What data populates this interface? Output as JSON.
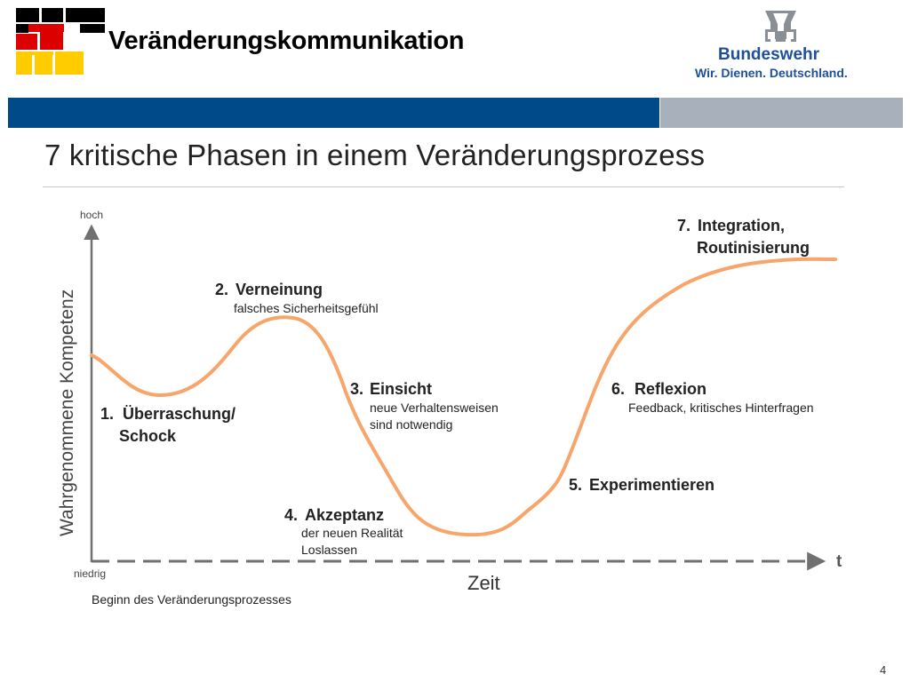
{
  "header": {
    "title": "Veränderungskommunikation",
    "brand_name": "Bundeswehr",
    "brand_tagline": "Wir. Dienen. Deutschland.",
    "logo_colors": [
      "#000000",
      "#dd0000",
      "#ffcc00"
    ],
    "emblem": "iron-cross-icon"
  },
  "colors": {
    "bar_blue": "#004a89",
    "bar_gray": "#a8b1bb",
    "curve": "#f7a56a",
    "axis": "#707070"
  },
  "slide": {
    "heading": "7 kritische Phasen in einem Veränderungsprozess",
    "page_number": "4"
  },
  "diagram": {
    "y_axis": {
      "label": "Wahrgenommene Kompetenz",
      "high": "hoch",
      "low": "niedrig"
    },
    "x_axis": {
      "label": "Zeit",
      "end_label": "t",
      "start_note": "Beginn des Veränderungsprozesses"
    },
    "phases": [
      {
        "number": "1.",
        "title_line1": "Überraschung/",
        "title_line2": "Schock"
      },
      {
        "number": "2.",
        "title": "Verneinung",
        "subtitle": "falsches Sicherheitsgefühl"
      },
      {
        "number": "3.",
        "title": "Einsicht",
        "subtitle_line1": "neue Verhaltensweisen",
        "subtitle_line2": "sind notwendig"
      },
      {
        "number": "4.",
        "title": "Akzeptanz",
        "subtitle_line1": "der neuen Realität",
        "subtitle_line2": "Loslassen"
      },
      {
        "number": "5.",
        "title": "Experimentieren"
      },
      {
        "number": "6.",
        "title": "Reflexion",
        "subtitle": "Feedback, kritisches Hinterfragen"
      },
      {
        "number": "7.",
        "title_line1": "Integration,",
        "title_line2": "Routinisierung"
      }
    ]
  }
}
